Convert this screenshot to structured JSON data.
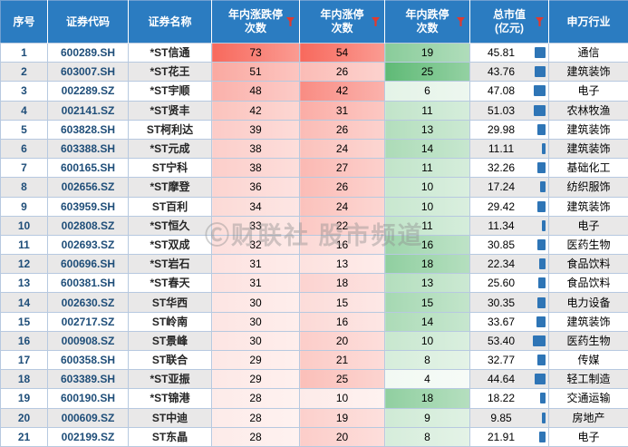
{
  "table": {
    "headers": [
      {
        "label": "序号"
      },
      {
        "label": "证券代码"
      },
      {
        "label": "证券名称"
      },
      {
        "line1": "年内涨跌停",
        "line2": "次数",
        "sort_icon": true
      },
      {
        "line1": "年内涨停",
        "line2": "次数",
        "sort_icon": true
      },
      {
        "line1": "年内跌停",
        "line2": "次数",
        "sort_icon": true
      },
      {
        "line1": "总市值",
        "line2": "(亿元)",
        "sort_icon": true
      },
      {
        "label": "申万行业"
      }
    ]
  },
  "watermark": {
    "text": "Ⓒ财联社 股市频道"
  },
  "colors": {
    "header_bg": "#2b7cc1",
    "header_text": "#ffffff",
    "band_even": "#e9e8e8",
    "band_odd": "#ffffff",
    "grid_line": "#b7c9e0",
    "index_code_text": "#1f4e79",
    "filter_icon": "#e03a2f",
    "market_cap_bar": "#2e75b6"
  },
  "chart_data": {
    "type": "table",
    "columns": [
      "序号",
      "证券代码",
      "证券名称",
      "年内涨跌停次数",
      "年内涨停次数",
      "年内跌停次数",
      "总市值(亿元)",
      "申万行业"
    ],
    "rows": [
      [
        1,
        "600289.SH",
        "*ST信通",
        73,
        54,
        19,
        "45.81",
        "通信"
      ],
      [
        2,
        "603007.SH",
        "*ST花王",
        51,
        26,
        25,
        "43.76",
        "建筑装饰"
      ],
      [
        3,
        "002289.SZ",
        "*ST宇顺",
        48,
        42,
        6,
        "47.08",
        "电子"
      ],
      [
        4,
        "002141.SZ",
        "*ST贤丰",
        42,
        31,
        11,
        "51.03",
        "农林牧渔"
      ],
      [
        5,
        "603828.SH",
        "ST柯利达",
        39,
        26,
        13,
        "29.98",
        "建筑装饰"
      ],
      [
        6,
        "603388.SH",
        "*ST元成",
        38,
        24,
        14,
        "11.11",
        "建筑装饰"
      ],
      [
        7,
        "600165.SH",
        "ST宁科",
        38,
        27,
        11,
        "32.26",
        "基础化工"
      ],
      [
        8,
        "002656.SZ",
        "*ST摩登",
        36,
        26,
        10,
        "17.24",
        "纺织服饰"
      ],
      [
        9,
        "603959.SH",
        "ST百利",
        34,
        24,
        10,
        "29.42",
        "建筑装饰"
      ],
      [
        10,
        "002808.SZ",
        "*ST恒久",
        33,
        22,
        11,
        "11.34",
        "电子"
      ],
      [
        11,
        "002693.SZ",
        "*ST双成",
        32,
        16,
        16,
        "30.85",
        "医药生物"
      ],
      [
        12,
        "600696.SH",
        "*ST岩石",
        31,
        13,
        18,
        "22.34",
        "食品饮料"
      ],
      [
        13,
        "600381.SH",
        "*ST春天",
        31,
        18,
        13,
        "25.60",
        "食品饮料"
      ],
      [
        14,
        "002630.SZ",
        "ST华西",
        30,
        15,
        15,
        "30.35",
        "电力设备"
      ],
      [
        15,
        "002717.SZ",
        "ST岭南",
        30,
        16,
        14,
        "33.67",
        "建筑装饰"
      ],
      [
        16,
        "000908.SZ",
        "ST景峰",
        30,
        20,
        10,
        "53.40",
        "医药生物"
      ],
      [
        17,
        "600358.SH",
        "ST联合",
        29,
        21,
        8,
        "32.77",
        "传媒"
      ],
      [
        18,
        "603389.SH",
        "*ST亚振",
        29,
        25,
        4,
        "44.64",
        "轻工制造"
      ],
      [
        19,
        "600190.SH",
        "*ST锦港",
        28,
        10,
        18,
        "18.22",
        "交通运输"
      ],
      [
        20,
        "000609.SZ",
        "ST中迪",
        28,
        19,
        9,
        "9.85",
        "房地产"
      ],
      [
        21,
        "002199.SZ",
        "ST东晶",
        28,
        20,
        8,
        "21.91",
        "电子"
      ]
    ],
    "conditional_formatting": {
      "limit_total": {
        "column": "年内涨跌停次数",
        "min": 28,
        "max": 73,
        "min_color": "#fdebe9",
        "max_color": "#f8695d"
      },
      "limit_up": {
        "column": "年内涨停次数",
        "min": 10,
        "max": 54,
        "min_color": "#fdebe9",
        "max_color": "#f8695d"
      },
      "limit_down": {
        "column": "年内跌停次数",
        "min": 4,
        "max": 25,
        "min_color": "#f2f9f3",
        "max_color": "#5fba76"
      },
      "market_cap_bar": {
        "column": "总市值(亿元)",
        "max": 53.4,
        "color": "#2e75b6"
      }
    }
  }
}
